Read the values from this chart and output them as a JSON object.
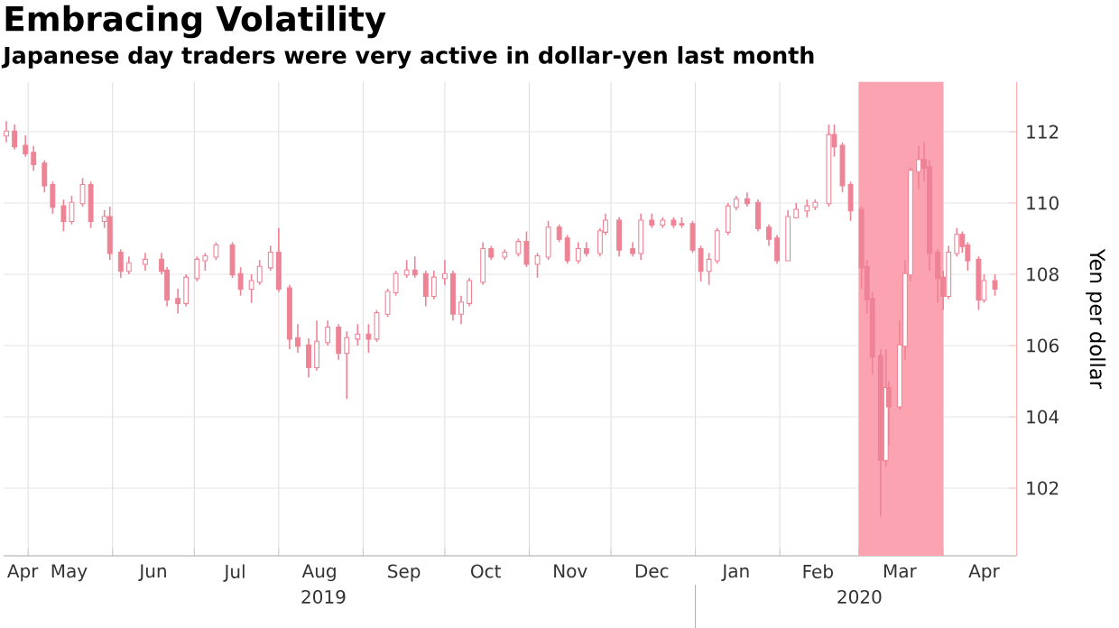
{
  "chart_data": {
    "type": "candlestick",
    "title": "Embracing Volatility",
    "subtitle": "Japanese day traders were very active in dollar-yen last month",
    "ylabel": "Yen per dollar",
    "color": "#ee8395",
    "grid": true,
    "xlim": [
      "2019-04-22",
      "2020-04-28"
    ],
    "ylim": [
      100.1,
      113.4
    ],
    "yticks": [
      102,
      104,
      106,
      108,
      110,
      112
    ],
    "xticks": [
      {
        "value": "2019-04-29",
        "label": "Apr"
      },
      {
        "value": "2019-05-16",
        "label": "May"
      },
      {
        "value": "2019-06-16",
        "label": "Jun"
      },
      {
        "value": "2019-07-16",
        "label": "Jul"
      },
      {
        "value": "2019-08-16",
        "label": "Aug"
      },
      {
        "value": "2019-09-16",
        "label": "Sep"
      },
      {
        "value": "2019-10-16",
        "label": "Oct"
      },
      {
        "value": "2019-11-16",
        "label": "Nov"
      },
      {
        "value": "2019-12-16",
        "label": "Dec"
      },
      {
        "value": "2020-01-16",
        "label": "Jan"
      },
      {
        "value": "2020-02-15",
        "label": "Feb"
      },
      {
        "value": "2020-03-16",
        "label": "Mar"
      },
      {
        "value": "2020-04-16",
        "label": "Apr"
      },
      {
        "value": "2019-05-01",
        "label": null
      },
      {
        "value": "2019-06-01",
        "label": null
      },
      {
        "value": "2019-07-01",
        "label": null
      },
      {
        "value": "2019-08-01",
        "label": null
      },
      {
        "value": "2019-09-01",
        "label": null
      },
      {
        "value": "2019-10-01",
        "label": null
      },
      {
        "value": "2019-11-01",
        "label": null
      },
      {
        "value": "2019-12-01",
        "label": null
      },
      {
        "value": "2020-01-01",
        "label": null
      },
      {
        "value": "2020-02-01",
        "label": null
      },
      {
        "value": "2020-03-01",
        "label": null
      },
      {
        "value": "2020-04-01",
        "label": null
      }
    ],
    "bands": [
      {
        "axis": "x",
        "from": "2020-03-01",
        "to": "2020-04-01",
        "color": "#fba3b0"
      }
    ],
    "annotations": [
      "2019",
      "2020"
    ],
    "x": [
      "2019-04-23",
      "2019-04-26",
      "2019-04-30",
      "2019-05-03",
      "2019-05-07",
      "2019-05-10",
      "2019-05-14",
      "2019-05-17",
      "2019-05-21",
      "2019-05-24",
      "2019-05-29",
      "2019-05-31",
      "2019-06-04",
      "2019-06-07",
      "2019-06-13",
      "2019-06-19",
      "2019-06-21",
      "2019-06-25",
      "2019-06-28",
      "2019-07-02",
      "2019-07-05",
      "2019-07-09",
      "2019-07-15",
      "2019-07-18",
      "2019-07-22",
      "2019-07-25",
      "2019-07-29",
      "2019-08-01",
      "2019-08-05",
      "2019-08-08",
      "2019-08-12",
      "2019-08-15",
      "2019-08-19",
      "2019-08-23",
      "2019-08-26",
      "2019-08-30",
      "2019-09-03",
      "2019-09-06",
      "2019-09-10",
      "2019-09-13",
      "2019-09-17",
      "2019-09-20",
      "2019-09-24",
      "2019-09-27",
      "2019-10-01",
      "2019-10-04",
      "2019-10-07",
      "2019-10-10",
      "2019-10-15",
      "2019-10-18",
      "2019-10-23",
      "2019-10-28",
      "2019-10-31",
      "2019-11-04",
      "2019-11-08",
      "2019-11-12",
      "2019-11-15",
      "2019-11-19",
      "2019-11-22",
      "2019-11-27",
      "2019-11-29",
      "2019-12-04",
      "2019-12-09",
      "2019-12-12",
      "2019-12-16",
      "2019-12-20",
      "2019-12-24",
      "2019-12-27",
      "2019-12-31",
      "2020-01-03",
      "2020-01-06",
      "2020-01-09",
      "2020-01-13",
      "2020-01-16",
      "2020-01-20",
      "2020-01-24",
      "2020-01-28",
      "2020-01-31",
      "2020-02-04",
      "2020-02-07",
      "2020-02-11",
      "2020-02-14",
      "2020-02-19",
      "2020-02-21",
      "2020-02-24",
      "2020-02-27",
      "2020-03-02",
      "2020-03-04",
      "2020-03-06",
      "2020-03-09",
      "2020-03-11",
      "2020-03-12",
      "2020-03-16",
      "2020-03-18",
      "2020-03-20",
      "2020-03-23",
      "2020-03-25",
      "2020-03-27",
      "2020-03-30",
      "2020-04-01",
      "2020-04-03",
      "2020-04-06",
      "2020-04-08",
      "2020-04-10",
      "2020-04-14",
      "2020-04-16",
      "2020-04-20"
    ],
    "ohlc": [
      [
        111.9,
        112.3,
        111.7,
        112.0
      ],
      [
        112.0,
        112.2,
        111.5,
        111.6
      ],
      [
        111.6,
        111.9,
        111.3,
        111.4
      ],
      [
        111.4,
        111.6,
        110.9,
        111.1
      ],
      [
        111.1,
        111.2,
        110.3,
        110.5
      ],
      [
        110.5,
        110.6,
        109.7,
        109.9
      ],
      [
        109.9,
        110.1,
        109.2,
        109.5
      ],
      [
        109.5,
        110.2,
        109.4,
        110.0
      ],
      [
        110.0,
        110.7,
        109.9,
        110.5
      ],
      [
        110.5,
        110.6,
        109.3,
        109.5
      ],
      [
        109.5,
        109.8,
        109.3,
        109.6
      ],
      [
        109.6,
        109.9,
        108.4,
        108.6
      ],
      [
        108.6,
        108.7,
        107.9,
        108.1
      ],
      [
        108.1,
        108.5,
        108.0,
        108.3
      ],
      [
        108.3,
        108.6,
        108.1,
        108.4
      ],
      [
        108.4,
        108.6,
        108.0,
        108.1
      ],
      [
        108.1,
        108.2,
        107.1,
        107.3
      ],
      [
        107.3,
        107.6,
        106.9,
        107.2
      ],
      [
        107.2,
        108.0,
        107.1,
        107.9
      ],
      [
        107.9,
        108.5,
        107.8,
        108.4
      ],
      [
        108.4,
        108.6,
        108.1,
        108.5
      ],
      [
        108.5,
        108.9,
        108.4,
        108.8
      ],
      [
        108.8,
        108.9,
        107.9,
        108.0
      ],
      [
        108.0,
        108.2,
        107.4,
        107.6
      ],
      [
        107.6,
        108.0,
        107.2,
        107.8
      ],
      [
        107.8,
        108.4,
        107.7,
        108.2
      ],
      [
        108.2,
        108.8,
        108.1,
        108.6
      ],
      [
        108.6,
        109.3,
        107.5,
        107.6
      ],
      [
        107.6,
        107.7,
        105.9,
        106.2
      ],
      [
        106.2,
        106.6,
        105.8,
        106.0
      ],
      [
        106.0,
        106.2,
        105.1,
        105.4
      ],
      [
        105.4,
        106.7,
        105.3,
        106.1
      ],
      [
        106.1,
        106.7,
        106.0,
        106.5
      ],
      [
        106.5,
        106.6,
        105.6,
        105.8
      ],
      [
        105.8,
        106.4,
        104.5,
        106.2
      ],
      [
        106.2,
        106.6,
        106.0,
        106.3
      ],
      [
        106.3,
        106.6,
        105.8,
        106.2
      ],
      [
        106.2,
        107.0,
        106.1,
        106.9
      ],
      [
        106.9,
        107.6,
        106.8,
        107.5
      ],
      [
        107.5,
        108.1,
        107.4,
        108.0
      ],
      [
        108.0,
        108.4,
        107.9,
        108.1
      ],
      [
        108.1,
        108.5,
        107.9,
        108.0
      ],
      [
        108.0,
        108.1,
        107.1,
        107.4
      ],
      [
        107.4,
        108.1,
        107.3,
        107.9
      ],
      [
        107.9,
        108.4,
        107.7,
        108.0
      ],
      [
        108.0,
        108.1,
        106.7,
        106.9
      ],
      [
        106.9,
        107.4,
        106.6,
        107.2
      ],
      [
        107.2,
        107.9,
        107.1,
        107.8
      ],
      [
        107.8,
        108.9,
        107.7,
        108.7
      ],
      [
        108.7,
        108.8,
        108.4,
        108.5
      ],
      [
        108.5,
        108.7,
        108.4,
        108.6
      ],
      [
        108.6,
        109.0,
        108.5,
        108.9
      ],
      [
        108.9,
        109.2,
        108.2,
        108.3
      ],
      [
        108.3,
        108.6,
        107.9,
        108.5
      ],
      [
        108.5,
        109.5,
        108.4,
        109.3
      ],
      [
        109.3,
        109.4,
        108.9,
        109.0
      ],
      [
        109.0,
        109.1,
        108.3,
        108.4
      ],
      [
        108.4,
        108.9,
        108.3,
        108.7
      ],
      [
        108.7,
        108.9,
        108.5,
        108.6
      ],
      [
        108.6,
        109.3,
        108.5,
        109.2
      ],
      [
        109.2,
        109.7,
        109.1,
        109.5
      ],
      [
        109.5,
        109.6,
        108.5,
        108.7
      ],
      [
        108.7,
        108.9,
        108.5,
        108.6
      ],
      [
        108.6,
        109.7,
        108.4,
        109.5
      ],
      [
        109.5,
        109.7,
        109.3,
        109.4
      ],
      [
        109.4,
        109.6,
        109.3,
        109.5
      ],
      [
        109.5,
        109.6,
        109.3,
        109.4
      ],
      [
        109.4,
        109.6,
        109.3,
        109.4
      ],
      [
        109.4,
        109.5,
        108.6,
        108.7
      ],
      [
        108.7,
        108.8,
        107.8,
        108.1
      ],
      [
        108.1,
        108.6,
        107.7,
        108.4
      ],
      [
        108.4,
        109.3,
        108.3,
        109.2
      ],
      [
        109.2,
        110.0,
        109.1,
        109.9
      ],
      [
        109.9,
        110.2,
        109.8,
        110.1
      ],
      [
        110.1,
        110.3,
        109.9,
        110.0
      ],
      [
        110.0,
        110.1,
        109.2,
        109.3
      ],
      [
        109.3,
        109.4,
        108.8,
        109.0
      ],
      [
        109.0,
        109.1,
        108.3,
        108.4
      ],
      [
        108.4,
        109.8,
        108.4,
        109.6
      ],
      [
        109.6,
        110.0,
        109.6,
        109.8
      ],
      [
        109.8,
        110.1,
        109.6,
        109.9
      ],
      [
        109.9,
        110.1,
        109.8,
        110.0
      ],
      [
        110.0,
        112.2,
        109.9,
        111.9
      ],
      [
        111.9,
        112.2,
        111.3,
        111.6
      ],
      [
        111.6,
        111.7,
        110.3,
        110.5
      ],
      [
        110.5,
        110.6,
        109.5,
        109.8
      ],
      [
        109.8,
        109.9,
        107.6,
        108.2
      ],
      [
        108.2,
        108.4,
        106.9,
        107.3
      ],
      [
        107.3,
        107.5,
        105.2,
        105.7
      ],
      [
        105.7,
        105.9,
        101.2,
        102.8
      ],
      [
        102.8,
        105.9,
        102.6,
        104.8
      ],
      [
        104.8,
        105.0,
        103.2,
        104.3
      ],
      [
        104.3,
        106.7,
        104.2,
        106.0
      ],
      [
        106.0,
        108.4,
        105.6,
        108.0
      ],
      [
        108.0,
        111.0,
        107.8,
        110.9
      ],
      [
        110.9,
        111.6,
        110.4,
        111.2
      ],
      [
        111.2,
        111.7,
        110.6,
        111.0
      ],
      [
        111.0,
        111.2,
        108.1,
        108.6
      ],
      [
        108.6,
        108.7,
        107.2,
        107.9
      ],
      [
        107.9,
        108.1,
        107.0,
        107.4
      ],
      [
        107.4,
        108.8,
        107.3,
        108.6
      ],
      [
        108.6,
        109.3,
        108.5,
        109.1
      ],
      [
        109.1,
        109.2,
        108.6,
        108.8
      ],
      [
        108.8,
        108.9,
        108.1,
        108.4
      ],
      [
        108.4,
        108.5,
        107.0,
        107.3
      ],
      [
        107.3,
        108.0,
        107.2,
        107.8
      ],
      [
        107.8,
        108.0,
        107.4,
        107.6
      ]
    ]
  }
}
